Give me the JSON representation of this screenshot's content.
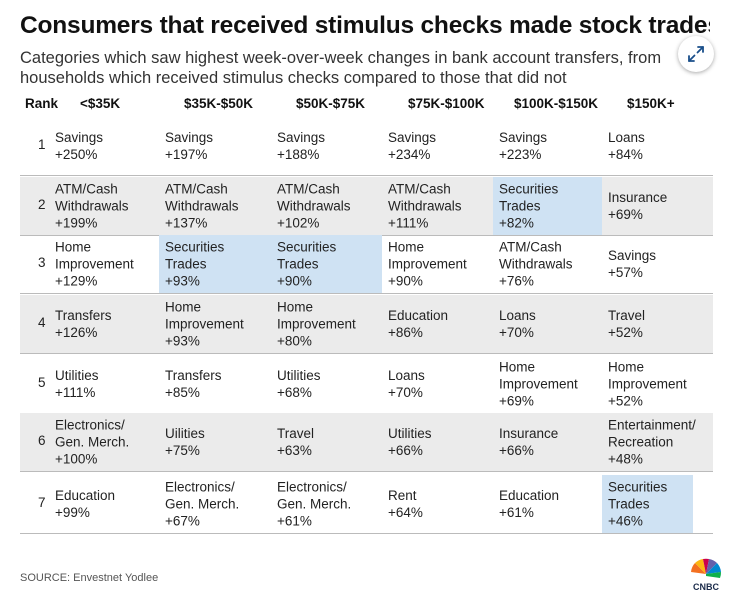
{
  "title": "Consumers that received stimulus checks made stock trades",
  "subtitle": "Categories which saw highest week-over-week changes in bank account transfers, from households which received stimulus checks compared to those that did not",
  "source": "SOURCE: Envestnet Yodlee",
  "expand_icon": "expand-arrows-icon",
  "logo": {
    "icon": "cnbc-peacock-icon",
    "text": "CNBC"
  },
  "colors": {
    "row_shade": "#ebebeb",
    "highlight": "#cfe2f3",
    "divider": "#bbbbbb"
  },
  "chart_data": {
    "type": "table",
    "columns": [
      "Rank",
      "<$35K",
      "$35K-$50K",
      "$50K-$75K",
      "$75K-$100K",
      "$100K-$150K",
      "$150K+"
    ],
    "rows": [
      {
        "rank": "1",
        "cells": [
          {
            "text": "Savings\n+250%"
          },
          {
            "text": "Savings\n+197%"
          },
          {
            "text": "Savings\n+188%"
          },
          {
            "text": "Savings\n+234%"
          },
          {
            "text": "Savings\n+223%"
          },
          {
            "text": "Loans\n+84%"
          }
        ]
      },
      {
        "rank": "2",
        "cells": [
          {
            "text": "ATM/Cash\nWithdrawals\n+199%"
          },
          {
            "text": "ATM/Cash\nWithdrawals\n+137%"
          },
          {
            "text": "ATM/Cash\nWithdrawals\n+102%"
          },
          {
            "text": "ATM/Cash\nWithdrawals\n+111%"
          },
          {
            "text": "Securities\nTrades\n+82%",
            "highlight": true
          },
          {
            "text": "Insurance\n+69%"
          }
        ]
      },
      {
        "rank": "3",
        "cells": [
          {
            "text": "Home\nImprovement\n+129%"
          },
          {
            "text": "Securities\nTrades\n+93%",
            "highlight": true
          },
          {
            "text": "Securities\nTrades\n+90%",
            "highlight": true
          },
          {
            "text": "Home\nImprovement\n+90%"
          },
          {
            "text": "ATM/Cash\nWithdrawals\n+76%"
          },
          {
            "text": "Savings\n+57%"
          }
        ]
      },
      {
        "rank": "4",
        "cells": [
          {
            "text": "Transfers\n+126%"
          },
          {
            "text": "Home\nImprovement\n+93%"
          },
          {
            "text": "Home\nImprovement\n+80%"
          },
          {
            "text": "Education\n+86%"
          },
          {
            "text": "Loans\n+70%"
          },
          {
            "text": "Travel\n+52%"
          }
        ]
      },
      {
        "rank": "5",
        "cells": [
          {
            "text": "Utilities\n+111%"
          },
          {
            "text": "Transfers\n+85%"
          },
          {
            "text": "Utilities\n+68%"
          },
          {
            "text": "Loans\n+70%"
          },
          {
            "text": "Home\nImprovement\n+69%"
          },
          {
            "text": "Home\nImprovement\n+52%"
          }
        ]
      },
      {
        "rank": "6",
        "cells": [
          {
            "text": "Electronics/\nGen. Merch.\n+100%"
          },
          {
            "text": "Uilities\n+75%"
          },
          {
            "text": "Travel\n+63%"
          },
          {
            "text": "Utilities\n+66%"
          },
          {
            "text": "Insurance\n+66%"
          },
          {
            "text": "Entertainment/\nRecreation\n+48%"
          }
        ]
      },
      {
        "rank": "7",
        "cells": [
          {
            "text": "Education\n+99%"
          },
          {
            "text": "Electronics/\nGen. Merch.\n+67%"
          },
          {
            "text": "Electronics/\nGen. Merch.\n+61%"
          },
          {
            "text": "Rent\n+64%"
          },
          {
            "text": "Education\n+61%"
          },
          {
            "text": "Securities\nTrades\n+46%",
            "highlight": true
          }
        ]
      }
    ]
  }
}
